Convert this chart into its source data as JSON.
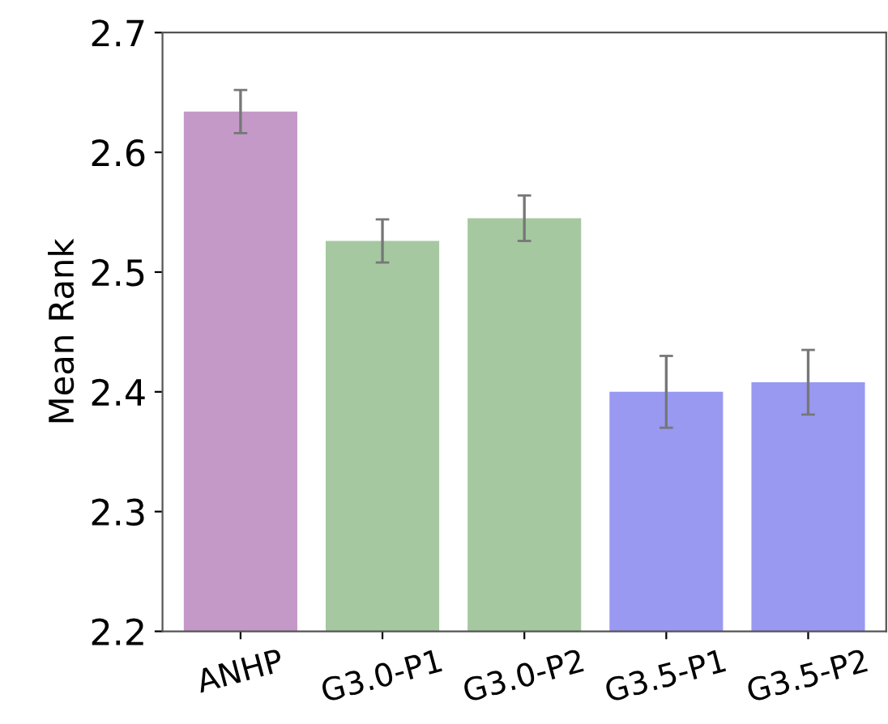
{
  "chart_data": {
    "type": "bar",
    "ylabel": "Mean Rank",
    "categories": [
      "ANHP",
      "G3.0-P1",
      "G3.0-P2",
      "G3.5-P1",
      "G3.5-P2"
    ],
    "values": [
      2.634,
      2.526,
      2.545,
      2.4,
      2.408
    ],
    "errors": [
      0.018,
      0.018,
      0.019,
      0.03,
      0.027
    ],
    "colors": [
      "#c499c8",
      "#a5c8a0",
      "#a5c8a0",
      "#9999f2",
      "#9999f2"
    ],
    "ylim": [
      2.2,
      2.7
    ],
    "yticks": [
      2.2,
      2.3,
      2.4,
      2.5,
      2.6,
      2.7
    ],
    "grid": false
  }
}
